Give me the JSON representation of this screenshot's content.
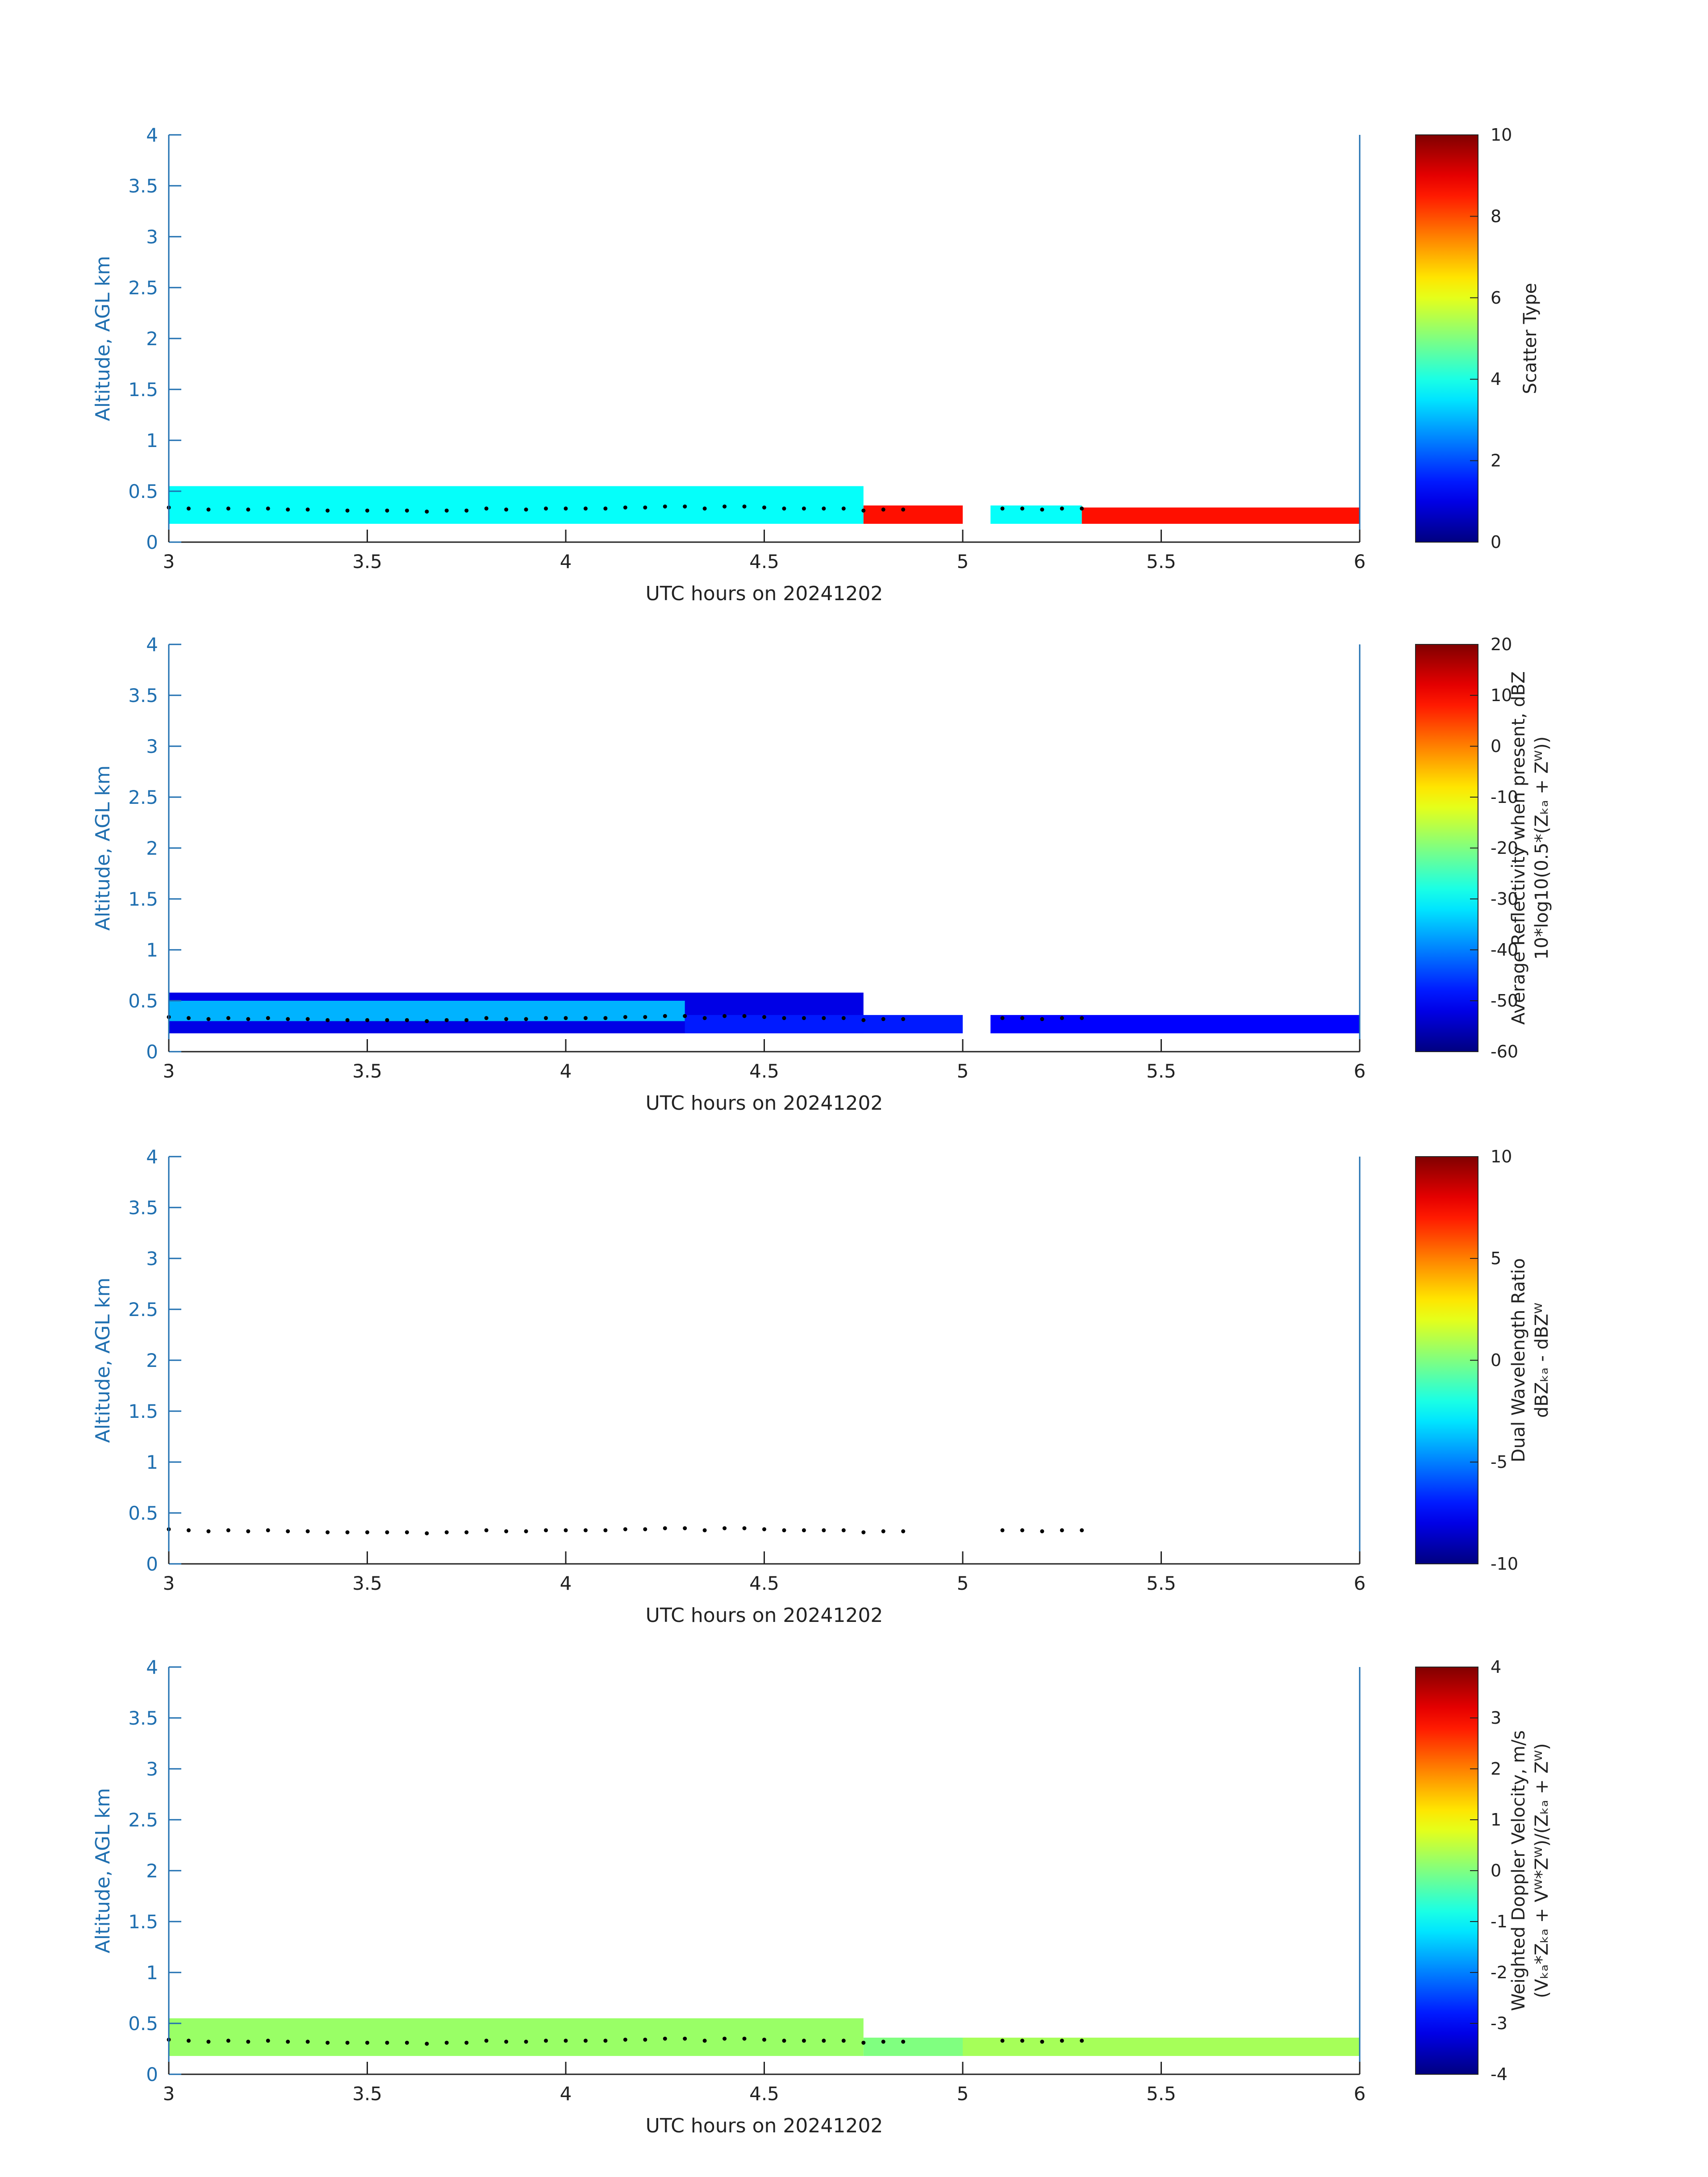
{
  "palette": {
    "axis": "#1f6fb0",
    "text": "#222222",
    "background": "#ffffff"
  },
  "chart_data": [
    {
      "type": "heatmap",
      "name": "scatter-type",
      "xlabel": "UTC hours on 20241202",
      "ylabel": "Altitude, AGL km",
      "xlim": [
        3,
        6
      ],
      "ylim": [
        0,
        4
      ],
      "xticks": [
        "3",
        "3.5",
        "4",
        "4.5",
        "5",
        "5.5",
        "6"
      ],
      "yticks": [
        "0",
        "0.5",
        "1",
        "1.5",
        "2",
        "2.5",
        "3",
        "3.5",
        "4"
      ],
      "colorbar": {
        "label_lines": [
          "Scatter Type"
        ],
        "range": [
          0,
          10
        ],
        "ticks": [
          "0",
          "2",
          "4",
          "6",
          "8",
          "10"
        ],
        "colormap": "jet"
      },
      "layers": [
        {
          "x0": 3.0,
          "x1": 4.75,
          "y0": 0.18,
          "y1": 0.55,
          "value": 3.8
        },
        {
          "x0": 4.75,
          "x1": 5.0,
          "y0": 0.18,
          "y1": 0.36,
          "value": 8.6
        },
        {
          "x0": 5.07,
          "x1": 5.3,
          "y0": 0.18,
          "y1": 0.36,
          "value": 3.8
        },
        {
          "x0": 5.3,
          "x1": 6.0,
          "y0": 0.18,
          "y1": 0.34,
          "value": 8.6
        }
      ],
      "dots": true
    },
    {
      "type": "heatmap",
      "name": "average-reflectivity",
      "xlabel": "UTC hours on 20241202",
      "ylabel": "Altitude, AGL km",
      "xlim": [
        3,
        6
      ],
      "ylim": [
        0,
        4
      ],
      "xticks": [
        "3",
        "3.5",
        "4",
        "4.5",
        "5",
        "5.5",
        "6"
      ],
      "yticks": [
        "0",
        "0.5",
        "1",
        "1.5",
        "2",
        "2.5",
        "3",
        "3.5",
        "4"
      ],
      "colorbar": {
        "label_lines": [
          "Average Reflectivity when present, dBZ",
          "10*log10(0.5*(Zₖₐ + Zᵂ))"
        ],
        "range": [
          -60,
          20
        ],
        "ticks": [
          "-60",
          "-50",
          "-40",
          "-30",
          "-20",
          "-10",
          "0",
          "10",
          "20"
        ],
        "colormap": "jet"
      },
      "layers": [
        {
          "x0": 3.0,
          "x1": 4.75,
          "y0": 0.18,
          "y1": 0.58,
          "value": -52
        },
        {
          "x0": 3.0,
          "x1": 4.3,
          "y0": 0.3,
          "y1": 0.5,
          "value": -36
        },
        {
          "x0": 4.3,
          "x1": 5.0,
          "y0": 0.18,
          "y1": 0.36,
          "value": -48
        },
        {
          "x0": 5.07,
          "x1": 6.0,
          "y0": 0.18,
          "y1": 0.36,
          "value": -50
        }
      ],
      "dots": true
    },
    {
      "type": "heatmap",
      "name": "dual-wavelength-ratio",
      "xlabel": "UTC hours on 20241202",
      "ylabel": "Altitude, AGL km",
      "xlim": [
        3,
        6
      ],
      "ylim": [
        0,
        4
      ],
      "xticks": [
        "3",
        "3.5",
        "4",
        "4.5",
        "5",
        "5.5",
        "6"
      ],
      "yticks": [
        "0",
        "0.5",
        "1",
        "1.5",
        "2",
        "2.5",
        "3",
        "3.5",
        "4"
      ],
      "colorbar": {
        "label_lines": [
          "Dual Wavelength Ratio",
          "dBZₖₐ - dBZᵂ"
        ],
        "range": [
          -10,
          10
        ],
        "ticks": [
          "-10",
          "-5",
          "0",
          "5",
          "10"
        ],
        "colormap": "jet"
      },
      "layers": [],
      "dots": true
    },
    {
      "type": "heatmap",
      "name": "weighted-doppler-velocity",
      "xlabel": "UTC hours on 20241202",
      "ylabel": "Altitude, AGL km",
      "xlim": [
        3,
        6
      ],
      "ylim": [
        0,
        4
      ],
      "xticks": [
        "3",
        "3.5",
        "4",
        "4.5",
        "5",
        "5.5",
        "6"
      ],
      "yticks": [
        "0",
        "0.5",
        "1",
        "1.5",
        "2",
        "2.5",
        "3",
        "3.5",
        "4"
      ],
      "colorbar": {
        "label_lines": [
          "Weighted Doppler Velocity, m/s",
          "(Vₖₐ*Zₖₐ + Vᵂ*Zᵂ)/(Zₖₐ + Zᵂ)"
        ],
        "range": [
          -4,
          4
        ],
        "ticks": [
          "-4",
          "-3",
          "-2",
          "-1",
          "0",
          "1",
          "2",
          "3",
          "4"
        ],
        "colormap": "jet"
      },
      "layers": [
        {
          "x0": 3.0,
          "x1": 4.75,
          "y0": 0.18,
          "y1": 0.55,
          "value": 0.2
        },
        {
          "x0": 4.75,
          "x1": 5.0,
          "y0": 0.18,
          "y1": 0.36,
          "value": 0.0
        },
        {
          "x0": 5.0,
          "x1": 6.0,
          "y0": 0.18,
          "y1": 0.36,
          "value": 0.3
        }
      ],
      "dots": true
    }
  ],
  "melting_dots": {
    "x": [
      3.0,
      3.05,
      3.1,
      3.15,
      3.2,
      3.25,
      3.3,
      3.35,
      3.4,
      3.45,
      3.5,
      3.55,
      3.6,
      3.65,
      3.7,
      3.75,
      3.8,
      3.85,
      3.9,
      3.95,
      4.0,
      4.05,
      4.1,
      4.15,
      4.2,
      4.25,
      4.3,
      4.35,
      4.4,
      4.45,
      4.5,
      4.55,
      4.6,
      4.65,
      4.7,
      4.75,
      4.8,
      4.85,
      5.1,
      5.15,
      5.2,
      5.25,
      5.3
    ],
    "y": [
      0.34,
      0.33,
      0.32,
      0.33,
      0.32,
      0.33,
      0.32,
      0.32,
      0.31,
      0.31,
      0.31,
      0.31,
      0.31,
      0.3,
      0.31,
      0.31,
      0.33,
      0.32,
      0.32,
      0.33,
      0.33,
      0.33,
      0.33,
      0.34,
      0.34,
      0.35,
      0.35,
      0.33,
      0.35,
      0.35,
      0.34,
      0.33,
      0.33,
      0.33,
      0.33,
      0.31,
      0.32,
      0.32,
      0.33,
      0.33,
      0.32,
      0.33,
      0.33
    ]
  }
}
